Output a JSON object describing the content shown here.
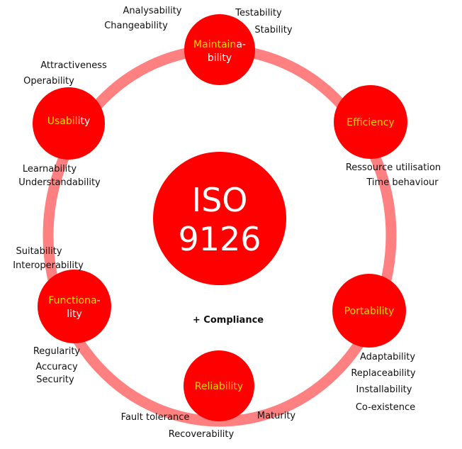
{
  "center": {
    "line1": "ISO",
    "line2": "9126"
  },
  "compliance": "+ Compliance",
  "colors": {
    "ring": "#ff8080",
    "node": "#ff0000",
    "highlight": "#ffd400",
    "text": "#111111"
  },
  "characteristics": [
    {
      "id": "maintainability",
      "label_lines": [
        {
          "hl": "Maintain",
          "wh": "a-"
        },
        {
          "hl": "",
          "wh": "bility"
        }
      ],
      "subcharacteristics": [
        "Analysability",
        "Changeability",
        "Testability",
        "Stability"
      ]
    },
    {
      "id": "efficiency",
      "label_lines": [
        {
          "hl": "Efficiency",
          "wh": ""
        }
      ],
      "subcharacteristics": [
        "Ressource utilisation",
        "Time behaviour"
      ]
    },
    {
      "id": "portability",
      "label_lines": [
        {
          "hl": "Portability",
          "wh": ""
        }
      ],
      "subcharacteristics": [
        "Adaptability",
        "Replaceability",
        "Installability",
        "Co-existence"
      ]
    },
    {
      "id": "reliability",
      "label_lines": [
        {
          "hl": "Reliability",
          "wh": ""
        }
      ],
      "subcharacteristics": [
        "Fault tolerance",
        "Recoverability",
        "Maturity"
      ]
    },
    {
      "id": "functionality",
      "label_lines": [
        {
          "hl": "Functiona",
          "wh": "-"
        },
        {
          "hl": "",
          "wh": "lity"
        }
      ],
      "subcharacteristics": [
        "Suitability",
        "Interoperability",
        "Regularity",
        "Accuracy",
        "Security"
      ]
    },
    {
      "id": "usability",
      "label_lines": [
        {
          "hl": "Usabil",
          "wh": "ity"
        }
      ],
      "subcharacteristics": [
        "Attractiveness",
        "Operability",
        "Learnability",
        "Understandability"
      ]
    }
  ]
}
